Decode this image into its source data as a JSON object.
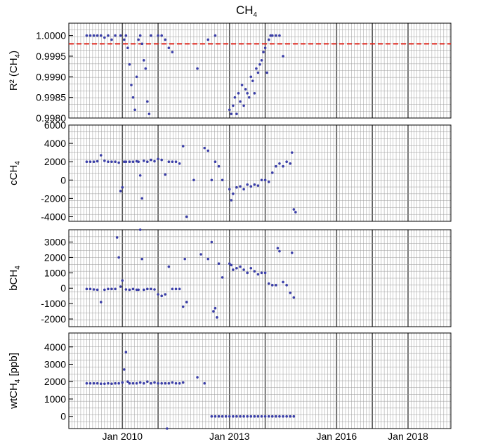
{
  "title": "CH4",
  "colors": {
    "points": "#3b3fa8",
    "threshold": "#e0241b",
    "grid_minor": "#999999",
    "grid_major": "#555555",
    "frame": "#000000"
  },
  "x_ticks": [
    "Jan 2010",
    "Jan 2013",
    "Jan 2016",
    "Jan 2018"
  ],
  "chart_data": [
    {
      "type": "scatter",
      "ylabel": "R² (CH4)",
      "ylim": [
        0.998,
        1.0003
      ],
      "yticks": [
        "0.9980",
        "0.9985",
        "0.9990",
        "0.9995",
        "1.0000"
      ],
      "ytick_values": [
        0.998,
        0.9985,
        0.999,
        0.9995,
        1.0
      ],
      "threshold": 0.9998,
      "points": [
        [
          2009.0,
          1.0
        ],
        [
          2009.1,
          1.0
        ],
        [
          2009.2,
          1.0
        ],
        [
          2009.3,
          1.0
        ],
        [
          2009.4,
          1.0
        ],
        [
          2009.5,
          0.99995
        ],
        [
          2009.6,
          1.0
        ],
        [
          2009.7,
          0.9999
        ],
        [
          2009.8,
          1.0
        ],
        [
          2009.95,
          1.0
        ],
        [
          2010.05,
          0.9999
        ],
        [
          2010.1,
          1.0
        ],
        [
          2010.15,
          0.9997
        ],
        [
          2010.2,
          0.9993
        ],
        [
          2010.25,
          0.9988
        ],
        [
          2010.3,
          0.9985
        ],
        [
          2010.35,
          0.9982
        ],
        [
          2010.4,
          0.999
        ],
        [
          2010.45,
          0.9999
        ],
        [
          2010.5,
          1.0
        ],
        [
          2010.55,
          0.9998
        ],
        [
          2010.6,
          0.9994
        ],
        [
          2010.65,
          0.9992
        ],
        [
          2010.7,
          0.9984
        ],
        [
          2010.75,
          0.9981
        ],
        [
          2010.8,
          1.0
        ],
        [
          2011.0,
          1.0
        ],
        [
          2011.1,
          1.0
        ],
        [
          2011.2,
          0.9999
        ],
        [
          2011.3,
          0.9997
        ],
        [
          2011.4,
          0.9996
        ],
        [
          2012.1,
          0.9992
        ],
        [
          2012.4,
          0.9999
        ],
        [
          2012.6,
          1.0
        ],
        [
          2013.0,
          0.9982
        ],
        [
          2013.05,
          0.9981
        ],
        [
          2013.1,
          0.9983
        ],
        [
          2013.15,
          0.9985
        ],
        [
          2013.2,
          0.9981
        ],
        [
          2013.25,
          0.9986
        ],
        [
          2013.3,
          0.9984
        ],
        [
          2013.35,
          0.9988
        ],
        [
          2013.4,
          0.9983
        ],
        [
          2013.45,
          0.9987
        ],
        [
          2013.5,
          0.9986
        ],
        [
          2013.55,
          0.9985
        ],
        [
          2013.6,
          0.999
        ],
        [
          2013.65,
          0.9989
        ],
        [
          2013.7,
          0.9986
        ],
        [
          2013.75,
          0.9992
        ],
        [
          2013.8,
          0.9991
        ],
        [
          2013.85,
          0.9993
        ],
        [
          2013.9,
          0.9994
        ],
        [
          2013.95,
          0.9996
        ],
        [
          2014.0,
          0.9997
        ],
        [
          2014.05,
          0.9991
        ],
        [
          2014.1,
          0.9999
        ],
        [
          2014.15,
          1.0
        ],
        [
          2014.2,
          1.0
        ],
        [
          2014.3,
          1.0
        ],
        [
          2014.4,
          1.0
        ],
        [
          2014.5,
          0.9995
        ]
      ]
    },
    {
      "type": "scatter",
      "ylabel": "cCH4",
      "ylim": [
        -4500,
        6000
      ],
      "yticks": [
        "-4000",
        "-2000",
        "0",
        "2000",
        "4000",
        "6000"
      ],
      "ytick_values": [
        -4000,
        -2000,
        0,
        2000,
        4000,
        6000
      ],
      "points": [
        [
          2009.0,
          2000
        ],
        [
          2009.1,
          2000
        ],
        [
          2009.2,
          2000
        ],
        [
          2009.3,
          2050
        ],
        [
          2009.4,
          2700
        ],
        [
          2009.5,
          2100
        ],
        [
          2009.6,
          2000
        ],
        [
          2009.7,
          2000
        ],
        [
          2009.8,
          2000
        ],
        [
          2009.9,
          1900
        ],
        [
          2009.95,
          -1200
        ],
        [
          2010.0,
          -800
        ],
        [
          2010.05,
          2000
        ],
        [
          2010.1,
          2000
        ],
        [
          2010.2,
          2000
        ],
        [
          2010.3,
          2000
        ],
        [
          2010.4,
          2050
        ],
        [
          2010.45,
          2000
        ],
        [
          2010.5,
          500
        ],
        [
          2010.55,
          -2000
        ],
        [
          2010.6,
          2100
        ],
        [
          2010.7,
          2000
        ],
        [
          2010.8,
          2200
        ],
        [
          2010.9,
          2050
        ],
        [
          2011.0,
          2300
        ],
        [
          2011.1,
          2200
        ],
        [
          2011.2,
          600
        ],
        [
          2011.3,
          2000
        ],
        [
          2011.4,
          2000
        ],
        [
          2011.5,
          2000
        ],
        [
          2011.6,
          1800
        ],
        [
          2011.7,
          3700
        ],
        [
          2011.8,
          -4000
        ],
        [
          2012.0,
          0
        ],
        [
          2012.3,
          3500
        ],
        [
          2012.4,
          3200
        ],
        [
          2012.5,
          0
        ],
        [
          2012.6,
          2000
        ],
        [
          2012.7,
          1500
        ],
        [
          2012.8,
          0
        ],
        [
          2013.0,
          -1000
        ],
        [
          2013.05,
          -2200
        ],
        [
          2013.1,
          -1500
        ],
        [
          2013.2,
          -800
        ],
        [
          2013.3,
          -700
        ],
        [
          2013.4,
          -1000
        ],
        [
          2013.5,
          -500
        ],
        [
          2013.6,
          -700
        ],
        [
          2013.7,
          -500
        ],
        [
          2013.8,
          -600
        ],
        [
          2013.9,
          0
        ],
        [
          2014.0,
          0
        ],
        [
          2014.1,
          -200
        ],
        [
          2014.2,
          800
        ],
        [
          2014.3,
          1500
        ],
        [
          2014.4,
          1800
        ],
        [
          2014.5,
          1500
        ],
        [
          2014.6,
          2000
        ],
        [
          2014.7,
          1800
        ],
        [
          2014.75,
          3000
        ],
        [
          2014.8,
          -3200
        ],
        [
          2014.85,
          -3500
        ]
      ]
    },
    {
      "type": "scatter",
      "ylabel": "bCH4",
      "ylim": [
        -2500,
        3800
      ],
      "yticks": [
        "-2000",
        "-1000",
        "0",
        "1000",
        "2000",
        "3000"
      ],
      "ytick_values": [
        -2000,
        -1000,
        0,
        1000,
        2000,
        3000
      ],
      "points": [
        [
          2009.0,
          -50
        ],
        [
          2009.1,
          -50
        ],
        [
          2009.2,
          -80
        ],
        [
          2009.3,
          -100
        ],
        [
          2009.4,
          -900
        ],
        [
          2009.5,
          -100
        ],
        [
          2009.6,
          -50
        ],
        [
          2009.7,
          -50
        ],
        [
          2009.8,
          -50
        ],
        [
          2009.85,
          3300
        ],
        [
          2009.9,
          2000
        ],
        [
          2009.95,
          100
        ],
        [
          2010.0,
          500
        ],
        [
          2010.1,
          -80
        ],
        [
          2010.2,
          -100
        ],
        [
          2010.3,
          -50
        ],
        [
          2010.4,
          -100
        ],
        [
          2010.45,
          -100
        ],
        [
          2010.5,
          3800
        ],
        [
          2010.55,
          1900
        ],
        [
          2010.6,
          -100
        ],
        [
          2010.7,
          -50
        ],
        [
          2010.8,
          -50
        ],
        [
          2010.9,
          -80
        ],
        [
          2011.0,
          -400
        ],
        [
          2011.1,
          -500
        ],
        [
          2011.2,
          -400
        ],
        [
          2011.3,
          1400
        ],
        [
          2011.4,
          -50
        ],
        [
          2011.5,
          -50
        ],
        [
          2011.6,
          -50
        ],
        [
          2011.7,
          -1200
        ],
        [
          2011.75,
          1900
        ],
        [
          2011.8,
          -900
        ],
        [
          2012.2,
          2200
        ],
        [
          2012.4,
          1900
        ],
        [
          2012.5,
          3000
        ],
        [
          2012.55,
          -1500
        ],
        [
          2012.6,
          -1300
        ],
        [
          2012.65,
          -1900
        ],
        [
          2012.7,
          1600
        ],
        [
          2012.8,
          700
        ],
        [
          2013.0,
          1600
        ],
        [
          2013.05,
          1500
        ],
        [
          2013.1,
          1200
        ],
        [
          2013.2,
          1300
        ],
        [
          2013.3,
          1400
        ],
        [
          2013.4,
          1200
        ],
        [
          2013.5,
          1000
        ],
        [
          2013.6,
          1300
        ],
        [
          2013.7,
          1100
        ],
        [
          2013.8,
          900
        ],
        [
          2013.9,
          1000
        ],
        [
          2014.0,
          1000
        ],
        [
          2014.1,
          300
        ],
        [
          2014.2,
          200
        ],
        [
          2014.3,
          200
        ],
        [
          2014.35,
          2600
        ],
        [
          2014.4,
          2400
        ],
        [
          2014.5,
          400
        ],
        [
          2014.6,
          200
        ],
        [
          2014.7,
          -300
        ],
        [
          2014.75,
          2300
        ],
        [
          2014.8,
          -600
        ]
      ]
    },
    {
      "type": "scatter",
      "ylabel": "wtCH4 [ppb]",
      "ylim": [
        -700,
        4800
      ],
      "yticks": [
        "0",
        "1000",
        "2000",
        "3000",
        "4000"
      ],
      "ytick_values": [
        0,
        1000,
        2000,
        3000,
        4000
      ],
      "points": [
        [
          2009.0,
          1900
        ],
        [
          2009.1,
          1900
        ],
        [
          2009.2,
          1900
        ],
        [
          2009.3,
          1900
        ],
        [
          2009.4,
          1880
        ],
        [
          2009.5,
          1880
        ],
        [
          2009.6,
          1900
        ],
        [
          2009.7,
          1880
        ],
        [
          2009.8,
          1900
        ],
        [
          2009.9,
          1900
        ],
        [
          2010.0,
          1950
        ],
        [
          2010.05,
          2700
        ],
        [
          2010.1,
          3700
        ],
        [
          2010.15,
          2000
        ],
        [
          2010.2,
          1900
        ],
        [
          2010.3,
          1900
        ],
        [
          2010.4,
          1900
        ],
        [
          2010.5,
          1950
        ],
        [
          2010.6,
          1900
        ],
        [
          2010.7,
          2000
        ],
        [
          2010.8,
          1900
        ],
        [
          2010.9,
          1950
        ],
        [
          2011.0,
          1900
        ],
        [
          2011.1,
          1900
        ],
        [
          2011.2,
          1900
        ],
        [
          2011.25,
          -700
        ],
        [
          2011.3,
          1900
        ],
        [
          2011.4,
          1950
        ],
        [
          2011.5,
          1900
        ],
        [
          2011.6,
          1900
        ],
        [
          2011.7,
          1950
        ],
        [
          2012.1,
          2250
        ],
        [
          2012.3,
          1900
        ],
        [
          2012.5,
          0
        ],
        [
          2012.6,
          0
        ],
        [
          2012.7,
          0
        ],
        [
          2012.8,
          0
        ],
        [
          2012.9,
          0
        ],
        [
          2013.0,
          0
        ],
        [
          2013.1,
          0
        ],
        [
          2013.2,
          0
        ],
        [
          2013.3,
          0
        ],
        [
          2013.4,
          0
        ],
        [
          2013.5,
          0
        ],
        [
          2013.6,
          0
        ],
        [
          2013.7,
          0
        ],
        [
          2013.8,
          0
        ],
        [
          2013.9,
          0
        ],
        [
          2014.0,
          0
        ],
        [
          2014.1,
          0
        ],
        [
          2014.2,
          0
        ],
        [
          2014.3,
          0
        ],
        [
          2014.4,
          0
        ],
        [
          2014.5,
          0
        ],
        [
          2014.6,
          0
        ],
        [
          2014.7,
          0
        ],
        [
          2014.8,
          0
        ]
      ]
    }
  ]
}
